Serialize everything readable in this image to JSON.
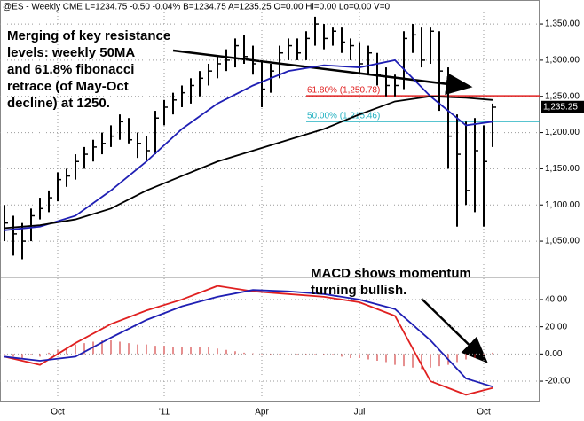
{
  "chart_data": [
    {
      "type": "ohlc",
      "header": "@ES - Weekly  CME  L=1234.75  -0.50  -0.04%  B=1234.75  A=1235.25  O=0.00  Hi=0.00  Lo=0.00  V=0",
      "annotation": [
        "Merging of key resistance",
        "levels: weekly 50MA",
        "and 61.8% fibonacci",
        "retrace (of May-Oct",
        "decline) at 1250."
      ],
      "categories": [
        null,
        null,
        null,
        null,
        null,
        null,
        "Oct",
        null,
        null,
        null,
        null,
        null,
        null,
        null,
        null,
        null,
        null,
        null,
        "'11",
        null,
        null,
        null,
        null,
        null,
        null,
        null,
        null,
        null,
        null,
        "Apr",
        null,
        null,
        null,
        null,
        null,
        null,
        null,
        null,
        null,
        null,
        "Jul",
        null,
        null,
        null,
        null,
        null,
        null,
        null,
        null,
        null,
        null,
        null,
        null,
        null,
        "Oct",
        null
      ],
      "high": [
        1100,
        1085,
        1075,
        1095,
        1110,
        1120,
        1145,
        1150,
        1170,
        1180,
        1190,
        1200,
        1210,
        1225,
        1220,
        1200,
        1195,
        1230,
        1245,
        1255,
        1265,
        1275,
        1285,
        1295,
        1305,
        1315,
        1330,
        1335,
        1320,
        1300,
        1295,
        1320,
        1330,
        1330,
        1340,
        1360,
        1350,
        1345,
        1345,
        1330,
        1325,
        1320,
        1310,
        1290,
        1280,
        1340,
        1350,
        1345,
        1345,
        1340,
        1290,
        1225,
        1215,
        1220,
        1210,
        1240
      ],
      "low": [
        1050,
        1030,
        1025,
        1050,
        1080,
        1090,
        1105,
        1125,
        1135,
        1150,
        1160,
        1170,
        1180,
        1190,
        1185,
        1165,
        1160,
        1170,
        1210,
        1225,
        1235,
        1240,
        1250,
        1265,
        1275,
        1285,
        1290,
        1295,
        1280,
        1235,
        1255,
        1275,
        1300,
        1300,
        1300,
        1320,
        1315,
        1320,
        1310,
        1300,
        1280,
        1280,
        1265,
        1250,
        1250,
        1260,
        1310,
        1290,
        1295,
        1230,
        1150,
        1070,
        1100,
        1090,
        1070,
        1180
      ],
      "close": [
        1075,
        1060,
        1050,
        1085,
        1095,
        1110,
        1135,
        1140,
        1160,
        1170,
        1180,
        1185,
        1195,
        1215,
        1190,
        1185,
        1175,
        1220,
        1235,
        1245,
        1255,
        1265,
        1275,
        1285,
        1295,
        1300,
        1320,
        1305,
        1295,
        1260,
        1285,
        1310,
        1320,
        1310,
        1330,
        1350,
        1330,
        1340,
        1325,
        1320,
        1295,
        1310,
        1280,
        1265,
        1265,
        1330,
        1335,
        1300,
        1340,
        1285,
        1195,
        1170,
        1120,
        1175,
        1160,
        1235
      ],
      "bar_color": "#000000",
      "x": [
        0,
        4,
        8,
        12,
        16,
        20,
        24,
        28,
        32,
        36,
        40,
        44,
        48,
        52,
        55
      ],
      "series": [
        {
          "color": "#1f1fb4",
          "values": [
            1065,
            1070,
            1085,
            1120,
            1160,
            1205,
            1240,
            1265,
            1285,
            1293,
            1290,
            1300,
            1250,
            1210,
            1215
          ]
        },
        {
          "color": "#000000",
          "values": [
            1068,
            1072,
            1080,
            1095,
            1120,
            1140,
            1160,
            1175,
            1190,
            1205,
            1225,
            1243,
            1250,
            1248,
            1245
          ]
        }
      ],
      "fibs": [
        {
          "label": "61.80% (1,250.78)",
          "value": 1250.78,
          "color": "#e02020"
        },
        {
          "label": "50.00% (1,215.46)",
          "value": 1215.46,
          "color": "#20b0c0"
        }
      ],
      "last": {
        "value": 1235.25,
        "label": "1,235.25"
      },
      "ylim": [
        1006,
        1366
      ],
      "yticks": [
        {
          "value": 1050,
          "label": "1,050.00"
        },
        {
          "value": 1100,
          "label": "1,100.00"
        },
        {
          "value": 1150,
          "label": "1,150.00"
        },
        {
          "value": 1200,
          "label": "1,200.00"
        },
        {
          "value": 1250,
          "label": "1,250.00"
        },
        {
          "value": 1300,
          "label": "1,300.00"
        },
        {
          "value": 1350,
          "label": "1,350.00"
        }
      ],
      "grid": true
    },
    {
      "type": "macd",
      "annotation": [
        "MACD shows momentum",
        "turning bullish."
      ],
      "x": [
        0,
        4,
        8,
        12,
        16,
        20,
        24,
        28,
        32,
        36,
        40,
        44,
        48,
        52,
        55
      ],
      "series": [
        {
          "color": "#e02020",
          "values": [
            -2,
            -8,
            8,
            22,
            32,
            40,
            50,
            46,
            44,
            42,
            38,
            28,
            -20,
            -30,
            -25
          ]
        },
        {
          "color": "#1f1fb4",
          "values": [
            -2,
            -5,
            -2,
            12,
            25,
            35,
            42,
            47,
            46,
            44,
            40,
            33,
            10,
            -18,
            -24
          ]
        }
      ],
      "histogram": {
        "color": "#cc2020",
        "values": [
          -1,
          -2,
          -3,
          -1,
          -2,
          1,
          3,
          5,
          7,
          8,
          9,
          10,
          10,
          9,
          8,
          7,
          7,
          6,
          6,
          5,
          5,
          5,
          5,
          5,
          4,
          3,
          2,
          1,
          0.5,
          -1,
          -1,
          -0.5,
          -0.5,
          -1,
          -1,
          -1,
          -1,
          -1,
          -2,
          -3,
          -3,
          -4,
          -5,
          -6,
          -8,
          -9,
          -10,
          -11,
          -10,
          -9,
          -8,
          -6,
          -4,
          -3,
          -1,
          1
        ]
      },
      "ylim": [
        -33,
        53
      ],
      "yticks": [
        {
          "value": 40,
          "label": "40.00"
        },
        {
          "value": 20,
          "label": "20.00"
        },
        {
          "value": 0,
          "label": "0.00"
        },
        {
          "value": -20,
          "label": "-20.00"
        }
      ],
      "grid": true
    }
  ]
}
